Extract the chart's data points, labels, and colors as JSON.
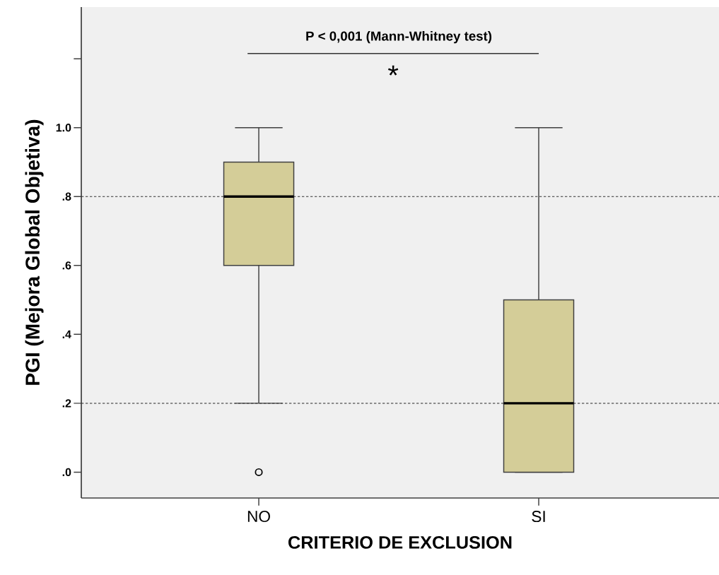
{
  "chart_data": {
    "type": "box",
    "xlabel": "CRITERIO DE EXCLUSION",
    "ylabel": "PGI (Mejora Global Objetiva)",
    "categories": [
      "NO",
      "SI"
    ],
    "series": [
      {
        "color": "#d4cd98",
        "boxes": [
          {
            "low": 0.2,
            "q1": 0.6,
            "median": 0.8,
            "q3": 0.9,
            "high": 1.0,
            "outliers": [
              0.0
            ]
          },
          {
            "low": 0.0,
            "q1": 0.0,
            "median": 0.2,
            "q3": 0.5,
            "high": 1.0
          }
        ]
      }
    ],
    "ylim": [
      -0.075,
      1.35
    ],
    "yticks": [
      {
        "value": 0,
        "label": ".0"
      },
      {
        "value": 0.2,
        "label": ".2"
      },
      {
        "value": 0.4,
        "label": ".4"
      },
      {
        "value": 0.6,
        "label": ".6"
      },
      {
        "value": 0.8,
        "label": ".8"
      },
      {
        "value": 1.0,
        "label": "1.0"
      },
      {
        "value": 1.2,
        "label": null
      }
    ],
    "ref_lines": [
      {
        "axis": "y",
        "value": 0.8,
        "line_style": "dotted"
      },
      {
        "axis": "y",
        "value": 0.2,
        "line_style": "dotted"
      }
    ],
    "annotations": [
      "P < 0,001 (Mann-Whitney test)",
      "*"
    ]
  }
}
